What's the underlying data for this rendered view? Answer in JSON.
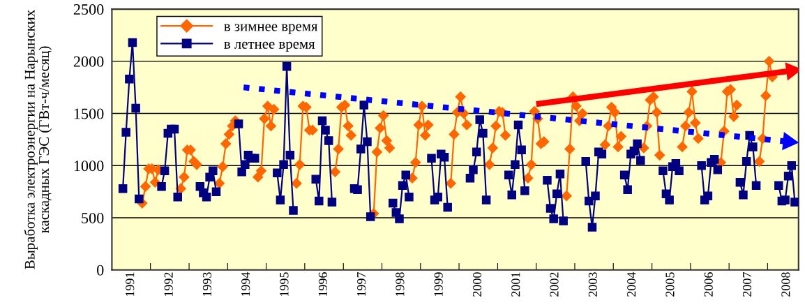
{
  "chart_data": {
    "type": "line",
    "ylabel": "Выработка электроэнергии на Нарынских\nкаскадных ГЭС (ГВт-ч/месяц)",
    "x": [
      "1991-04",
      "1991-05",
      "1991-06",
      "1991-07",
      "1991-08",
      "1991-09",
      "1991-10",
      "1991-11",
      "1991-12",
      "1992-01",
      "1992-02",
      "1992-03",
      "1992-04",
      "1992-05",
      "1992-06",
      "1992-07",
      "1992-08",
      "1992-09",
      "1992-10",
      "1992-11",
      "1992-12",
      "1993-01",
      "1993-02",
      "1993-03",
      "1993-04",
      "1993-05",
      "1993-06",
      "1993-07",
      "1993-08",
      "1993-09",
      "1993-10",
      "1993-11",
      "1993-12",
      "1994-01",
      "1994-02",
      "1994-03",
      "1994-04",
      "1994-05",
      "1994-06",
      "1994-07",
      "1994-08",
      "1994-09",
      "1994-10",
      "1994-11",
      "1994-12",
      "1995-01",
      "1995-02",
      "1995-03",
      "1995-04",
      "1995-05",
      "1995-06",
      "1995-07",
      "1995-08",
      "1995-09",
      "1995-10",
      "1995-11",
      "1995-12",
      "1996-01",
      "1996-02",
      "1996-03",
      "1996-04",
      "1996-05",
      "1996-06",
      "1996-07",
      "1996-08",
      "1996-09",
      "1996-10",
      "1996-11",
      "1996-12",
      "1997-01",
      "1997-02",
      "1997-03",
      "1997-04",
      "1997-05",
      "1997-06",
      "1997-07",
      "1997-08",
      "1997-09",
      "1997-10",
      "1997-11",
      "1997-12",
      "1998-01",
      "1998-02",
      "1998-03",
      "1998-04",
      "1998-05",
      "1998-06",
      "1998-07",
      "1998-08",
      "1998-09",
      "1998-10",
      "1998-11",
      "1998-12",
      "1999-01",
      "1999-02",
      "1999-03",
      "1999-04",
      "1999-05",
      "1999-06",
      "1999-07",
      "1999-08",
      "1999-09",
      "1999-10",
      "1999-11",
      "1999-12",
      "2000-01",
      "2000-02",
      "2000-03",
      "2000-04",
      "2000-05",
      "2000-06",
      "2000-07",
      "2000-08",
      "2000-09",
      "2000-10",
      "2000-11",
      "2000-12",
      "2001-01",
      "2001-02",
      "2001-03",
      "2001-04",
      "2001-05",
      "2001-06",
      "2001-07",
      "2001-08",
      "2001-09",
      "2001-10",
      "2001-11",
      "2001-12",
      "2002-01",
      "2002-02",
      "2002-03",
      "2002-04",
      "2002-05",
      "2002-06",
      "2002-07",
      "2002-08",
      "2002-09",
      "2002-10",
      "2002-11",
      "2002-12",
      "2003-01",
      "2003-02",
      "2003-03",
      "2003-04",
      "2003-05",
      "2003-06",
      "2003-07",
      "2003-08",
      "2003-09",
      "2003-10",
      "2003-11",
      "2003-12",
      "2004-01",
      "2004-02",
      "2004-03",
      "2004-04",
      "2004-05",
      "2004-06",
      "2004-07",
      "2004-08",
      "2004-09",
      "2004-10",
      "2004-11",
      "2004-12",
      "2005-01",
      "2005-02",
      "2005-03",
      "2005-04",
      "2005-05",
      "2005-06",
      "2005-07",
      "2005-08",
      "2005-09",
      "2005-10",
      "2005-11",
      "2005-12",
      "2006-01",
      "2006-02",
      "2006-03",
      "2006-04",
      "2006-05",
      "2006-06",
      "2006-07",
      "2006-08",
      "2006-09",
      "2006-10",
      "2006-11",
      "2006-12",
      "2007-01",
      "2007-02",
      "2007-03",
      "2007-04",
      "2007-05",
      "2007-06",
      "2007-07",
      "2007-08",
      "2007-09",
      "2007-10",
      "2007-11",
      "2007-12",
      "2008-01",
      "2008-02",
      "2008-03",
      "2008-04",
      "2008-05",
      "2008-06",
      "2008-07",
      "2008-08",
      "2008-09"
    ],
    "series": [
      {
        "name": "в зимнее время",
        "color": "#ff6600",
        "marker": "diamond",
        "values": [
          null,
          null,
          null,
          null,
          null,
          null,
          640,
          800,
          970,
          970,
          840,
          960,
          null,
          null,
          null,
          null,
          null,
          null,
          780,
          890,
          1150,
          1150,
          1040,
          1010,
          null,
          null,
          null,
          null,
          null,
          null,
          830,
          990,
          1210,
          1300,
          1380,
          1430,
          null,
          null,
          null,
          null,
          null,
          null,
          890,
          950,
          1450,
          1570,
          1380,
          1540,
          null,
          null,
          null,
          null,
          null,
          null,
          830,
          1010,
          1570,
          1560,
          1340,
          1340,
          null,
          null,
          null,
          null,
          null,
          null,
          940,
          1160,
          1560,
          1580,
          1380,
          1290,
          null,
          null,
          null,
          null,
          null,
          null,
          540,
          1130,
          1360,
          1480,
          1240,
          1170,
          null,
          null,
          null,
          null,
          null,
          null,
          880,
          1030,
          1390,
          1570,
          1290,
          1390,
          null,
          null,
          null,
          null,
          null,
          null,
          830,
          1300,
          1510,
          1660,
          1500,
          1390,
          null,
          null,
          null,
          null,
          null,
          null,
          1010,
          1170,
          1380,
          1520,
          1510,
          1290,
          null,
          null,
          null,
          null,
          null,
          null,
          880,
          1010,
          1520,
          1450,
          1210,
          1230,
          null,
          null,
          null,
          null,
          null,
          null,
          710,
          1160,
          1660,
          1570,
          1430,
          1500,
          null,
          null,
          null,
          null,
          null,
          null,
          1200,
          1380,
          1560,
          1510,
          1180,
          1280,
          null,
          null,
          null,
          null,
          null,
          null,
          1170,
          1380,
          1630,
          1660,
          1510,
          1100,
          null,
          null,
          null,
          null,
          null,
          null,
          1180,
          1380,
          1510,
          1710,
          1410,
          1260,
          null,
          null,
          null,
          null,
          null,
          null,
          1030,
          1330,
          1710,
          1730,
          1470,
          1580,
          null,
          null,
          null,
          null,
          null,
          null,
          1040,
          1260,
          1670,
          2000,
          1850,
          null,
          null,
          null,
          null,
          null,
          null,
          null
        ]
      },
      {
        "name": "в летнее время",
        "color": "#000080",
        "marker": "square",
        "values": [
          780,
          1320,
          1830,
          2180,
          1550,
          680,
          null,
          null,
          null,
          null,
          null,
          null,
          800,
          950,
          1310,
          1350,
          1350,
          700,
          null,
          null,
          null,
          null,
          null,
          null,
          800,
          740,
          700,
          890,
          950,
          750,
          null,
          null,
          null,
          null,
          null,
          null,
          1400,
          940,
          1010,
          1100,
          1070,
          1070,
          null,
          null,
          null,
          null,
          null,
          null,
          930,
          670,
          1010,
          1950,
          1100,
          570,
          null,
          null,
          null,
          null,
          null,
          null,
          870,
          660,
          1430,
          1340,
          1240,
          650,
          null,
          null,
          null,
          null,
          null,
          null,
          780,
          770,
          1160,
          1580,
          1230,
          510,
          null,
          null,
          null,
          null,
          null,
          null,
          640,
          550,
          490,
          810,
          910,
          700,
          null,
          null,
          null,
          null,
          null,
          null,
          1070,
          670,
          700,
          1110,
          1080,
          600,
          null,
          null,
          null,
          null,
          null,
          null,
          880,
          960,
          1130,
          1440,
          1310,
          670,
          null,
          null,
          null,
          null,
          null,
          null,
          910,
          720,
          1010,
          1390,
          1150,
          760,
          null,
          null,
          null,
          null,
          null,
          null,
          860,
          590,
          490,
          730,
          920,
          470,
          null,
          null,
          null,
          null,
          null,
          null,
          1040,
          660,
          410,
          710,
          1130,
          1110,
          null,
          null,
          null,
          null,
          null,
          null,
          910,
          770,
          1110,
          1140,
          1210,
          1050,
          null,
          null,
          null,
          null,
          null,
          null,
          950,
          730,
          670,
          990,
          1020,
          950,
          null,
          null,
          null,
          null,
          null,
          null,
          1000,
          670,
          710,
          1030,
          1060,
          960,
          null,
          null,
          null,
          null,
          null,
          null,
          840,
          720,
          1040,
          1290,
          1180,
          810,
          null,
          null,
          null,
          null,
          null,
          null,
          810,
          660,
          670,
          900,
          1000,
          650
        ]
      },
      {
        "color": "#0000ff",
        "marker": "triangle",
        "line_style": "dotted",
        "x": [
          "1994-06-01",
          "2008-07-15"
        ],
        "values": [
          1750,
          1230
        ]
      },
      {
        "color": "#ff0000",
        "marker": "triangle",
        "line_style": "solid",
        "x": [
          "2002-01-01",
          "2008-08-15"
        ],
        "values": [
          1590,
          1910
        ]
      }
    ],
    "xlim": [
      "1991-01-01",
      "2008-10-20"
    ],
    "xticks": [
      {
        "value": "1991-07-01",
        "label": "1991"
      },
      {
        "value": "1992-01-01",
        "label": null
      },
      {
        "value": "1992-07-01",
        "label": "1992"
      },
      {
        "value": "1993-01-01",
        "label": null
      },
      {
        "value": "1993-07-01",
        "label": "1993"
      },
      {
        "value": "1994-01-01",
        "label": null
      },
      {
        "value": "1994-07-01",
        "label": "1994"
      },
      {
        "value": "1995-01-01",
        "label": null
      },
      {
        "value": "1995-07-01",
        "label": "1995"
      },
      {
        "value": "1996-01-01",
        "label": null
      },
      {
        "value": "1996-07-01",
        "label": "1996"
      },
      {
        "value": "1997-01-01",
        "label": null
      },
      {
        "value": "1997-07-01",
        "label": "1997"
      },
      {
        "value": "1998-01-01",
        "label": null
      },
      {
        "value": "1998-07-01",
        "label": "1998"
      },
      {
        "value": "1999-01-01",
        "label": null
      },
      {
        "value": "1999-07-01",
        "label": "1999"
      },
      {
        "value": "2000-01-01",
        "label": null
      },
      {
        "value": "2000-07-01",
        "label": "2000"
      },
      {
        "value": "2001-01-01",
        "label": null
      },
      {
        "value": "2001-07-01",
        "label": "2001"
      },
      {
        "value": "2002-01-01",
        "label": null
      },
      {
        "value": "2002-07-01",
        "label": "2002"
      },
      {
        "value": "2003-01-01",
        "label": null
      },
      {
        "value": "2003-07-01",
        "label": "2003"
      },
      {
        "value": "2004-01-01",
        "label": null
      },
      {
        "value": "2004-07-01",
        "label": "2004"
      },
      {
        "value": "2005-01-01",
        "label": null
      },
      {
        "value": "2005-07-01",
        "label": "2005"
      },
      {
        "value": "2006-01-01",
        "label": null
      },
      {
        "value": "2006-07-01",
        "label": "2006"
      },
      {
        "value": "2007-01-01",
        "label": null
      },
      {
        "value": "2007-07-01",
        "label": "2007"
      },
      {
        "value": "2008-01-01",
        "label": null
      },
      {
        "value": "2008-07-01",
        "label": "2008"
      }
    ],
    "ylim": [
      0,
      2500
    ],
    "yticks": [
      0,
      500,
      1000,
      1500,
      2000,
      2500
    ],
    "grid": "y",
    "legend": "top left"
  }
}
